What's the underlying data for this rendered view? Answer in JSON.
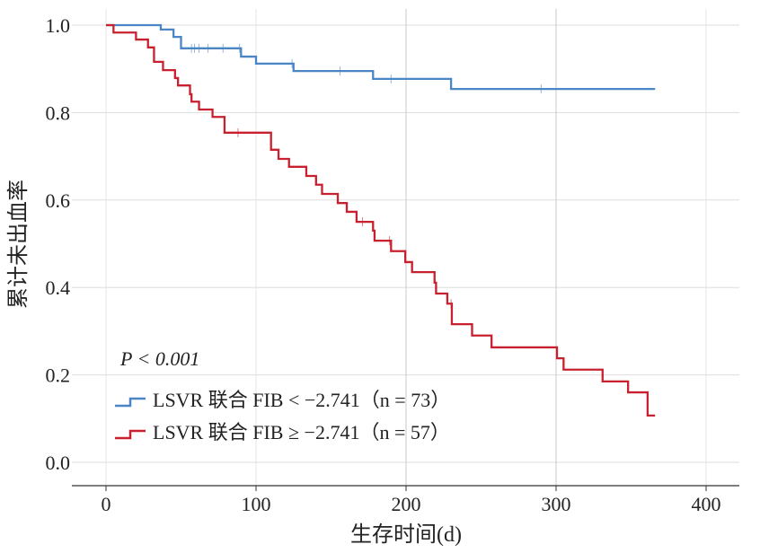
{
  "chart_data": {
    "type": "line",
    "subtype": "kaplan-meier-step",
    "xlabel": "生存时间(d)",
    "ylabel": "累计未出血率",
    "xlim": [
      0,
      400
    ],
    "ylim": [
      0,
      1.0
    ],
    "xticks": [
      "0",
      "100",
      "200",
      "300",
      "400"
    ],
    "yticks": [
      "0.0",
      "0.2",
      "0.4",
      "0.6",
      "0.8",
      "1.0"
    ],
    "xtick_values": [
      0,
      100,
      200,
      300,
      400
    ],
    "ytick_values": [
      0,
      0.2,
      0.4,
      0.6,
      0.8,
      1.0
    ],
    "grid": true,
    "annotation": "P < 0.001",
    "legend_position": "bottom-left",
    "series": [
      {
        "name": "LSVR 联合 FIB < −2.741（n = 73）",
        "color": "#4a86c5",
        "end": 366,
        "steps": [
          [
            0,
            1.0
          ],
          [
            36.5,
            0.99
          ],
          [
            45,
            0.973
          ],
          [
            50,
            0.947
          ],
          [
            90,
            0.928
          ],
          [
            100,
            0.912
          ],
          [
            125,
            0.895
          ],
          [
            178,
            0.877
          ],
          [
            230,
            0.854
          ]
        ],
        "censored": [
          57,
          59,
          62,
          68,
          78,
          89,
          124,
          156,
          190,
          290
        ]
      },
      {
        "name": "LSVR 联合 FIB ≥ −2.741（n = 57）",
        "color": "#c8202f",
        "end": 366,
        "steps": [
          [
            0,
            1.0
          ],
          [
            5,
            0.983
          ],
          [
            20,
            0.967
          ],
          [
            28,
            0.949
          ],
          [
            32,
            0.916
          ],
          [
            38,
            0.897
          ],
          [
            46,
            0.879
          ],
          [
            48,
            0.862
          ],
          [
            56,
            0.842
          ],
          [
            57,
            0.825
          ],
          [
            62,
            0.807
          ],
          [
            71,
            0.79
          ],
          [
            79,
            0.754
          ],
          [
            110,
            0.715
          ],
          [
            115,
            0.694
          ],
          [
            122,
            0.676
          ],
          [
            133.5,
            0.655
          ],
          [
            140,
            0.635
          ],
          [
            144,
            0.614
          ],
          [
            154.5,
            0.593
          ],
          [
            160.5,
            0.573
          ],
          [
            167,
            0.55
          ],
          [
            178,
            0.53
          ],
          [
            179,
            0.507
          ],
          [
            190,
            0.483
          ],
          [
            199.5,
            0.458
          ],
          [
            204,
            0.435
          ],
          [
            219,
            0.411
          ],
          [
            220,
            0.386
          ],
          [
            227.5,
            0.363
          ],
          [
            230.5,
            0.316
          ],
          [
            244,
            0.29
          ],
          [
            257,
            0.263
          ],
          [
            300.6,
            0.238
          ],
          [
            305,
            0.212
          ],
          [
            331,
            0.185
          ],
          [
            348,
            0.16
          ],
          [
            361,
            0.107
          ]
        ],
        "censored": [
          88,
          171,
          189,
          230
        ]
      }
    ]
  }
}
